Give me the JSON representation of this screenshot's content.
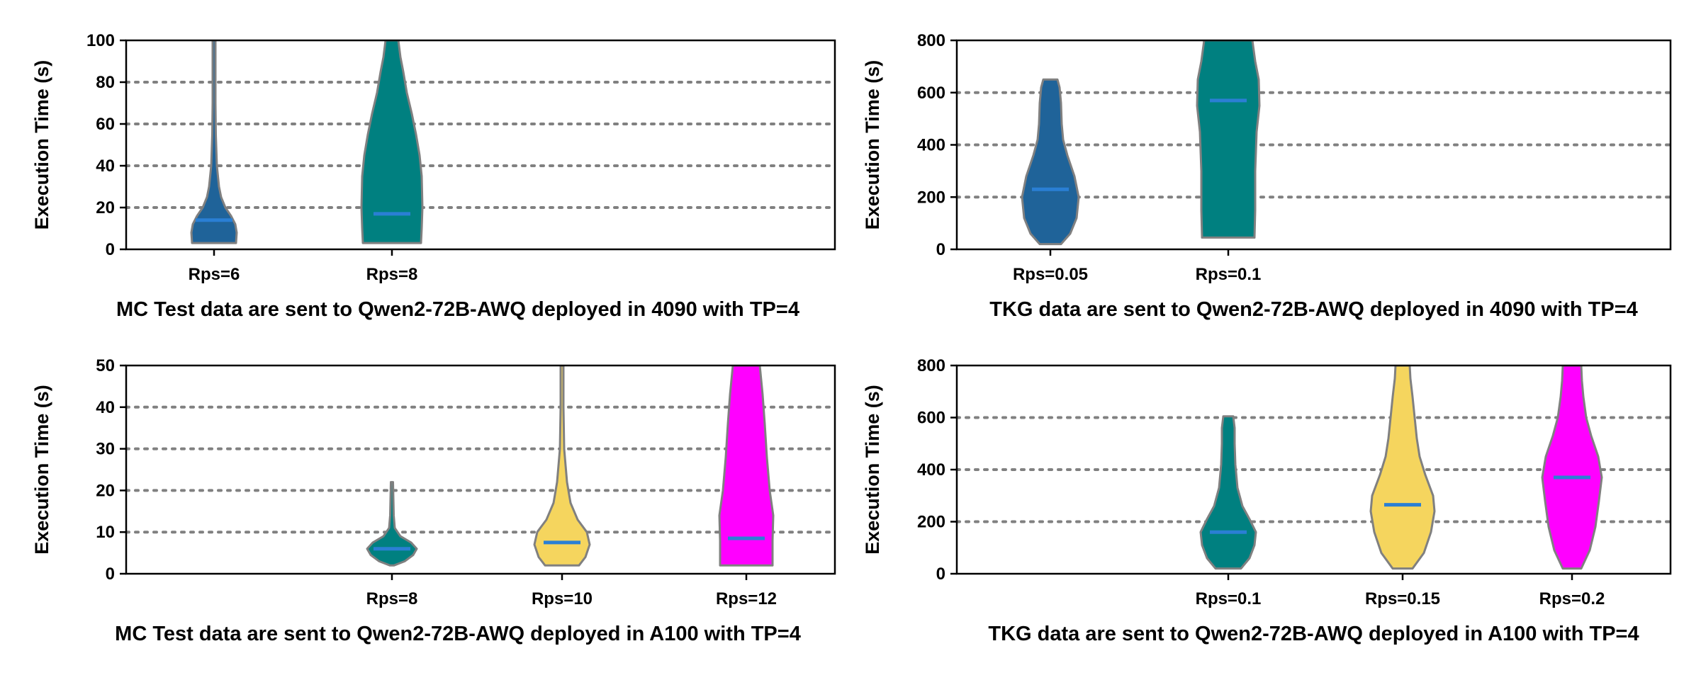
{
  "chart_data": [
    {
      "type": "violin",
      "xlabel": "MC Test data are sent to Qwen2-72B-AWQ deployed in 4090 with TP=4",
      "ylabel": "Execution Time (s)",
      "ylim": [
        0,
        100
      ],
      "yticks": [
        0,
        20,
        40,
        60,
        80,
        100
      ],
      "grid": "horizontal dotted at 20, 40, 60, 80",
      "slots": 4,
      "categories": [
        "Rps=6",
        "Rps=8"
      ],
      "series": [
        {
          "category": "Rps=6",
          "slot": 0,
          "color": "#1f6399",
          "median": 14,
          "min": 3,
          "max": 100,
          "profile": [
            [
              3,
              31
            ],
            [
              8,
              32
            ],
            [
              12,
              30
            ],
            [
              16,
              24
            ],
            [
              20,
              16
            ],
            [
              25,
              10
            ],
            [
              30,
              7
            ],
            [
              40,
              4
            ],
            [
              55,
              2.5
            ],
            [
              70,
              2
            ],
            [
              85,
              2
            ],
            [
              100,
              2
            ]
          ]
        },
        {
          "category": "Rps=8",
          "slot": 1,
          "color": "#008080",
          "median": 17,
          "min": 3,
          "max": 100,
          "profile": [
            [
              3,
              41
            ],
            [
              10,
              42
            ],
            [
              20,
              43
            ],
            [
              35,
              42
            ],
            [
              45,
              39
            ],
            [
              55,
              34
            ],
            [
              65,
              28
            ],
            [
              75,
              21
            ],
            [
              85,
              16
            ],
            [
              92,
              12
            ],
            [
              100,
              9
            ]
          ]
        }
      ]
    },
    {
      "type": "violin",
      "xlabel": "TKG data are sent to Qwen2-72B-AWQ deployed in 4090 with TP=4",
      "ylabel": "Execution Time (s)",
      "ylim": [
        0,
        800
      ],
      "yticks": [
        0,
        200,
        400,
        600,
        800
      ],
      "grid": "horizontal dotted at 200, 400, 600",
      "slots": 4,
      "categories": [
        "Rps=0.05",
        "Rps=0.1"
      ],
      "series": [
        {
          "category": "Rps=0.05",
          "slot": 0,
          "color": "#1f6399",
          "median": 230,
          "min": 20,
          "max": 650,
          "profile": [
            [
              20,
              15
            ],
            [
              60,
              28
            ],
            [
              120,
              37
            ],
            [
              200,
              40
            ],
            [
              280,
              34
            ],
            [
              360,
              24
            ],
            [
              420,
              18
            ],
            [
              480,
              16
            ],
            [
              560,
              15
            ],
            [
              620,
              13
            ],
            [
              650,
              10
            ]
          ]
        },
        {
          "category": "Rps=0.1",
          "slot": 1,
          "color": "#008080",
          "median": 570,
          "min": 45,
          "max": 800,
          "profile": [
            [
              45,
              37
            ],
            [
              150,
              38
            ],
            [
              300,
              38
            ],
            [
              450,
              40
            ],
            [
              550,
              44
            ],
            [
              650,
              43
            ],
            [
              720,
              38
            ],
            [
              800,
              34
            ]
          ]
        }
      ]
    },
    {
      "type": "violin",
      "xlabel": "MC Test data are sent to Qwen2-72B-AWQ deployed in A100 with TP=4",
      "ylabel": "Execution Time (s)",
      "ylim": [
        0,
        50
      ],
      "yticks": [
        0,
        10,
        20,
        30,
        40,
        50
      ],
      "grid": "horizontal dotted at 10, 20, 30, 40",
      "slots": 4,
      "categories": [
        "Rps=8",
        "Rps=10",
        "Rps=12"
      ],
      "series": [
        {
          "category": "Rps=8",
          "slot": 1,
          "color": "#008080",
          "median": 6,
          "min": 2,
          "max": 22,
          "profile": [
            [
              2,
              3
            ],
            [
              3,
              18
            ],
            [
              4.5,
              30
            ],
            [
              6,
              35
            ],
            [
              7.5,
              27
            ],
            [
              9,
              12
            ],
            [
              11,
              4
            ],
            [
              14,
              2.5
            ],
            [
              18,
              2
            ],
            [
              22,
              1.5
            ]
          ]
        },
        {
          "category": "Rps=10",
          "slot": 2,
          "color": "#f5d55e",
          "median": 7.5,
          "min": 2,
          "max": 50,
          "profile": [
            [
              2,
              24
            ],
            [
              4,
              33
            ],
            [
              7,
              39
            ],
            [
              10,
              35
            ],
            [
              13,
              22
            ],
            [
              17,
              12
            ],
            [
              22,
              7
            ],
            [
              26,
              5
            ],
            [
              30,
              3
            ],
            [
              40,
              2
            ],
            [
              50,
              2
            ]
          ]
        },
        {
          "category": "Rps=12",
          "slot": 3,
          "color": "#ff00ff",
          "median": 8.5,
          "min": 2,
          "max": 50,
          "profile": [
            [
              2,
              37
            ],
            [
              8,
              37
            ],
            [
              14,
              38
            ],
            [
              20,
              33
            ],
            [
              28,
              29
            ],
            [
              36,
              26
            ],
            [
              43,
              23
            ],
            [
              50,
              19
            ]
          ]
        }
      ]
    },
    {
      "type": "violin",
      "xlabel": "TKG data are sent to Qwen2-72B-AWQ deployed in A100 with TP=4",
      "ylabel": "Execution Time (s)",
      "ylim": [
        0,
        800
      ],
      "yticks": [
        0,
        200,
        400,
        600,
        800
      ],
      "grid": "horizontal dotted at 200, 400, 600",
      "slots": 4,
      "categories": [
        "Rps=0.1",
        "Rps=0.15",
        "Rps=0.2"
      ],
      "series": [
        {
          "category": "Rps=0.1",
          "slot": 1,
          "color": "#008080",
          "median": 160,
          "min": 20,
          "max": 605,
          "profile": [
            [
              20,
              18
            ],
            [
              60,
              30
            ],
            [
              110,
              37
            ],
            [
              160,
              39
            ],
            [
              210,
              30
            ],
            [
              260,
              20
            ],
            [
              330,
              13
            ],
            [
              420,
              10
            ],
            [
              500,
              9
            ],
            [
              560,
              9
            ],
            [
              605,
              7
            ]
          ]
        },
        {
          "category": "Rps=0.15",
          "slot": 2,
          "color": "#f5d55e",
          "median": 265,
          "min": 20,
          "max": 800,
          "profile": [
            [
              20,
              14
            ],
            [
              80,
              30
            ],
            [
              160,
              40
            ],
            [
              240,
              45
            ],
            [
              300,
              43
            ],
            [
              380,
              32
            ],
            [
              450,
              24
            ],
            [
              520,
              20
            ],
            [
              600,
              17
            ],
            [
              680,
              14
            ],
            [
              750,
              11
            ],
            [
              800,
              10
            ]
          ]
        },
        {
          "category": "Rps=0.2",
          "slot": 3,
          "color": "#ff00ff",
          "median": 370,
          "min": 20,
          "max": 800,
          "profile": [
            [
              20,
              13
            ],
            [
              90,
              25
            ],
            [
              180,
              33
            ],
            [
              280,
              38
            ],
            [
              370,
              42
            ],
            [
              450,
              37
            ],
            [
              530,
              27
            ],
            [
              600,
              20
            ],
            [
              680,
              16
            ],
            [
              740,
              14
            ],
            [
              800,
              13
            ]
          ]
        }
      ]
    }
  ]
}
